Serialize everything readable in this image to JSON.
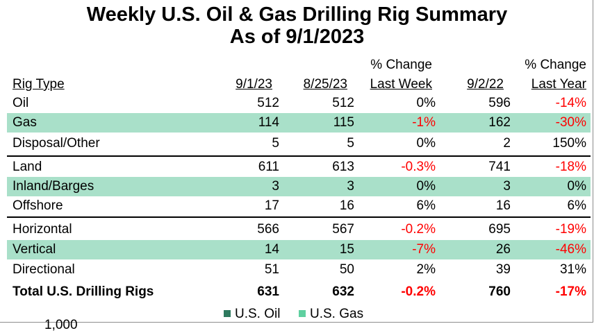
{
  "title": {
    "line1": "Weekly U.S. Oil & Gas Drilling Rig Summary",
    "line2": "As of 9/1/2023"
  },
  "headers": {
    "rig_type": "Rig Type",
    "current": "9/1/23",
    "previous": "8/25/23",
    "change_week_top": "% Change",
    "change_week_bottom": "Last Week",
    "last_year": "9/2/22",
    "change_year_top": "% Change",
    "change_year_bottom": "Last Year"
  },
  "rows": [
    {
      "name": "Oil",
      "current": "512",
      "previous": "512",
      "change_week": "0%",
      "last_year": "596",
      "change_year": "-14%"
    },
    {
      "name": "Gas",
      "current": "114",
      "previous": "115",
      "change_week": "-1%",
      "last_year": "162",
      "change_year": "-30%"
    },
    {
      "name": "Disposal/Other",
      "current": "5",
      "previous": "5",
      "change_week": "0%",
      "last_year": "2",
      "change_year": "150%"
    },
    {
      "name": "Land",
      "current": "611",
      "previous": "613",
      "change_week": "-0.3%",
      "last_year": "741",
      "change_year": "-18%"
    },
    {
      "name": "Inland/Barges",
      "current": "3",
      "previous": "3",
      "change_week": "0%",
      "last_year": "3",
      "change_year": "0%"
    },
    {
      "name": "Offshore",
      "current": "17",
      "previous": "16",
      "change_week": "6%",
      "last_year": "16",
      "change_year": "6%"
    },
    {
      "name": "Horizontal",
      "current": "566",
      "previous": "567",
      "change_week": "-0.2%",
      "last_year": "695",
      "change_year": "-19%"
    },
    {
      "name": "Vertical",
      "current": "14",
      "previous": "15",
      "change_week": "-7%",
      "last_year": "26",
      "change_year": "-46%"
    },
    {
      "name": "Directional",
      "current": "51",
      "previous": "50",
      "change_week": "2%",
      "last_year": "39",
      "change_year": "31%"
    }
  ],
  "total": {
    "name": "Total U.S. Drilling Rigs",
    "current": "631",
    "previous": "632",
    "change_week": "-0.2%",
    "last_year": "760",
    "change_year": "-17%"
  },
  "legend": {
    "oil_label": "U.S. Oil",
    "oil_color": "#2e7a5f",
    "gas_label": "U.S. Gas",
    "gas_color": "#5fd0a0"
  },
  "partial_axis_label": "1,000",
  "colors": {
    "shade": "#a9e0c9",
    "negative": "#ff0000"
  }
}
